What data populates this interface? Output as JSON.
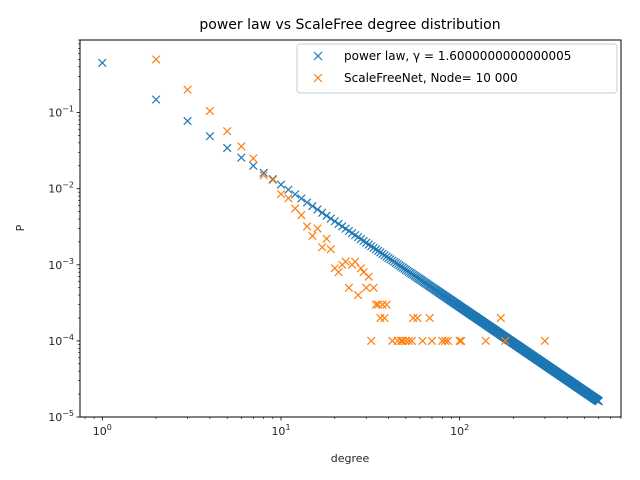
{
  "chart_data": {
    "type": "scatter",
    "title": "power law vs ScaleFree degree distribution",
    "xlabel": "degree",
    "ylabel": "P",
    "xscale": "log",
    "yscale": "log",
    "xlim": [
      0.75,
      800
    ],
    "ylim": [
      1e-05,
      0.9
    ],
    "x_ticks": [
      {
        "value": 1,
        "base": "10",
        "exp": "0"
      },
      {
        "value": 10,
        "base": "10",
        "exp": "1"
      },
      {
        "value": 100,
        "base": "10",
        "exp": "2"
      }
    ],
    "y_ticks": [
      {
        "value": 1e-05,
        "base": "10",
        "exp": "−5"
      },
      {
        "value": 0.0001,
        "base": "10",
        "exp": "−4"
      },
      {
        "value": 0.001,
        "base": "10",
        "exp": "−3"
      },
      {
        "value": 0.01,
        "base": "10",
        "exp": "−2"
      },
      {
        "value": 0.1,
        "base": "10",
        "exp": "−1"
      }
    ],
    "grid": false,
    "legend_position": "top-right",
    "power_law": {
      "name": "power law, γ =  1.6000000000000005",
      "color": "#1f77b4",
      "marker": "x",
      "gamma": 1.6,
      "x_min": 1,
      "x_max": 600,
      "y_at_1": 0.45
    },
    "series": [
      {
        "name": "ScaleFreeNet, Node= 10 000",
        "color": "#ff7f0e",
        "marker": "x",
        "points": [
          [
            2,
            0.5
          ],
          [
            3,
            0.2
          ],
          [
            4,
            0.105
          ],
          [
            5,
            0.057
          ],
          [
            6,
            0.036
          ],
          [
            7,
            0.025
          ],
          [
            8,
            0.015
          ],
          [
            9,
            0.013
          ],
          [
            10,
            0.0085
          ],
          [
            11,
            0.0075
          ],
          [
            12,
            0.0055
          ],
          [
            13,
            0.0045
          ],
          [
            14,
            0.0032
          ],
          [
            15,
            0.0024
          ],
          [
            16,
            0.003
          ],
          [
            17,
            0.0017
          ],
          [
            18,
            0.0022
          ],
          [
            19,
            0.0016
          ],
          [
            20,
            0.0009
          ],
          [
            21,
            0.0008
          ],
          [
            22,
            0.001
          ],
          [
            23,
            0.0011
          ],
          [
            24,
            0.0005
          ],
          [
            25,
            0.001
          ],
          [
            26,
            0.0011
          ],
          [
            27,
            0.0004
          ],
          [
            28,
            0.0009
          ],
          [
            29,
            0.0008
          ],
          [
            30,
            0.0005
          ],
          [
            31,
            0.0007
          ],
          [
            32,
            0.0001
          ],
          [
            33,
            0.0005
          ],
          [
            34,
            0.0003
          ],
          [
            35,
            0.0003
          ],
          [
            36,
            0.0002
          ],
          [
            37,
            0.0003
          ],
          [
            38,
            0.0002
          ],
          [
            39,
            0.0003
          ],
          [
            42,
            0.0001
          ],
          [
            45,
            0.0001
          ],
          [
            47,
            0.0001
          ],
          [
            48,
            0.0001
          ],
          [
            50,
            0.0001
          ],
          [
            52,
            0.0001
          ],
          [
            54,
            0.0001
          ],
          [
            55,
            0.0002
          ],
          [
            58,
            0.0002
          ],
          [
            62,
            0.0001
          ],
          [
            68,
            0.0002
          ],
          [
            70,
            0.0001
          ],
          [
            80,
            0.0001
          ],
          [
            83,
            0.0001
          ],
          [
            86,
            0.0001
          ],
          [
            100,
            0.0001
          ],
          [
            102,
            0.0001
          ],
          [
            140,
            0.0001
          ],
          [
            170,
            0.0002
          ],
          [
            180,
            0.0001
          ],
          [
            300,
            0.0001
          ]
        ]
      }
    ]
  }
}
